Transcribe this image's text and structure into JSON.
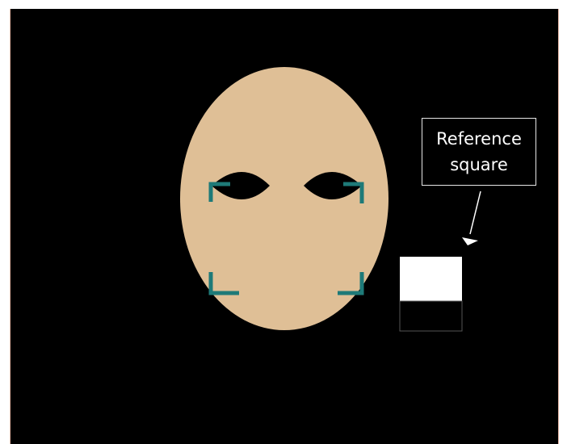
{
  "callout": {
    "label": "Reference square"
  },
  "colors": {
    "background": "#000000",
    "face": "#dfbf96",
    "corner_marker": "#1e7a78",
    "reference_top": "#ffffff",
    "reference_bottom": "#000000",
    "callout_border": "#e6e6e6",
    "frame_edge": "#e8b9a9"
  },
  "icons": {
    "face": "oval-face-icon",
    "eye": "almond-eye-icon",
    "corner": "corner-bracket-icon",
    "arrow": "arrow-icon"
  }
}
